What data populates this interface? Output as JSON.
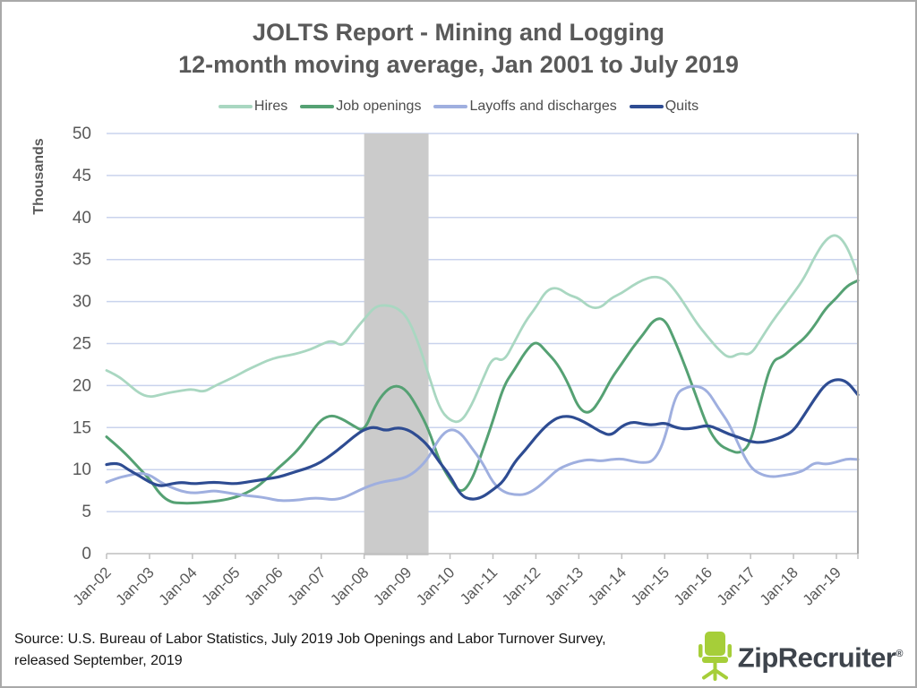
{
  "title": {
    "line1": "JOLTS Report - Mining and Logging",
    "line2": "12-month moving average, Jan 2001 to July 2019",
    "color": "#595959"
  },
  "legend": [
    {
      "label": "Hires",
      "color": "#a9d7c1"
    },
    {
      "label": "Job openings",
      "color": "#55a173"
    },
    {
      "label": "Layoffs and discharges",
      "color": "#9fafdf"
    },
    {
      "label": "Quits",
      "color": "#2e4c92"
    }
  ],
  "source": {
    "line1": "Source: U.S. Bureau of Labor Statistics, July 2019 Job Openings and Labor Turnover Survey,",
    "line2": "released September, 2019"
  },
  "logo": {
    "text": "ZipRecruiter",
    "registered": "®",
    "chair_color": "#a6ce39",
    "text_color": "#3e444c"
  },
  "chart_data": {
    "type": "line",
    "title": "JOLTS Report - Mining and Logging, 12-month moving average, Jan 2001 to July 2019",
    "ylabel": "Thousands",
    "ylim": [
      0,
      50
    ],
    "ytick_step": 5,
    "grid": true,
    "legend_position": "top",
    "x_start": 2002.0,
    "x_step": 0.25,
    "x_end": 2019.5,
    "x_tick_labels": [
      "Jan-02",
      "Jan-03",
      "Jan-04",
      "Jan-05",
      "Jan-06",
      "Jan-07",
      "Jan-08",
      "Jan-09",
      "Jan-10",
      "Jan-11",
      "Jan-12",
      "Jan-13",
      "Jan-14",
      "Jan-15",
      "Jan-16",
      "Jan-17",
      "Jan-18",
      "Jan-19"
    ],
    "recession_band": {
      "from": 2008.0,
      "to": 2009.5,
      "color": "#cbcbcb"
    },
    "colors": {
      "grid": "#c9d3ed",
      "axis": "#bfbfbf",
      "right_spine": "#a6a6a6",
      "tick_label": "#595959"
    },
    "series": [
      {
        "name": "Hires",
        "color": "#a9d7c1",
        "width": 2.8,
        "values": [
          21.8,
          21.2,
          20.2,
          19.1,
          18.6,
          18.9,
          19.2,
          19.4,
          19.6,
          19.2,
          19.9,
          20.5,
          21.1,
          21.8,
          22.4,
          23.0,
          23.4,
          23.6,
          23.9,
          24.3,
          24.9,
          25.4,
          24.6,
          26.4,
          27.9,
          29.4,
          29.6,
          29.3,
          28.2,
          25.3,
          21.3,
          17.3,
          15.8,
          15.6,
          17.6,
          20.6,
          23.5,
          22.8,
          25.2,
          27.6,
          29.3,
          31.4,
          31.7,
          30.8,
          30.4,
          29.3,
          29.2,
          30.4,
          31.0,
          31.9,
          32.6,
          33.0,
          32.7,
          31.3,
          29.4,
          27.4,
          25.8,
          24.3,
          23.2,
          23.9,
          23.6,
          25.6,
          27.6,
          29.3,
          31.0,
          32.8,
          35.4,
          37.4,
          38.1,
          36.6,
          33.2
        ]
      },
      {
        "name": "Job openings",
        "color": "#55a173",
        "width": 3,
        "values": [
          13.9,
          12.8,
          11.6,
          10.2,
          8.9,
          7.0,
          6.1,
          6.0,
          6.0,
          6.1,
          6.2,
          6.4,
          6.7,
          7.2,
          7.9,
          9.0,
          10.2,
          11.3,
          12.6,
          14.3,
          16.0,
          16.5,
          16.0,
          15.2,
          14.5,
          17.6,
          19.4,
          20.1,
          19.4,
          17.3,
          14.8,
          11.0,
          8.8,
          7.1,
          8.6,
          12.1,
          15.8,
          20.0,
          21.9,
          24.0,
          25.4,
          24.0,
          22.6,
          20.3,
          17.2,
          16.6,
          18.3,
          20.8,
          22.6,
          24.5,
          26.1,
          27.9,
          28.0,
          25.2,
          22.0,
          18.5,
          15.0,
          13.0,
          12.3,
          11.9,
          13.0,
          18.5,
          23.0,
          23.4,
          24.6,
          25.6,
          27.2,
          29.2,
          30.4,
          31.9,
          32.5
        ]
      },
      {
        "name": "Layoffs and discharges",
        "color": "#9fafdf",
        "width": 3,
        "values": [
          8.5,
          9.0,
          9.3,
          9.6,
          9.4,
          8.5,
          7.9,
          7.4,
          7.2,
          7.3,
          7.5,
          7.3,
          7.1,
          6.9,
          6.8,
          6.6,
          6.3,
          6.3,
          6.4,
          6.6,
          6.6,
          6.4,
          6.6,
          7.2,
          7.8,
          8.3,
          8.6,
          8.8,
          9.1,
          10.0,
          11.4,
          13.8,
          14.9,
          14.4,
          12.6,
          10.9,
          8.4,
          7.3,
          7.0,
          7.0,
          7.7,
          8.8,
          10.0,
          10.6,
          11.0,
          11.2,
          11.0,
          11.2,
          11.3,
          11.0,
          10.8,
          11.0,
          13.5,
          19.0,
          19.8,
          20.0,
          19.4,
          17.3,
          15.5,
          12.6,
          10.2,
          9.4,
          9.1,
          9.3,
          9.5,
          9.9,
          10.9,
          10.6,
          10.9,
          11.3,
          11.2
        ]
      },
      {
        "name": "Quits",
        "color": "#2e4c92",
        "width": 3.2,
        "values": [
          10.6,
          10.9,
          10.0,
          9.3,
          8.5,
          8.0,
          8.3,
          8.5,
          8.3,
          8.4,
          8.5,
          8.4,
          8.3,
          8.5,
          8.7,
          8.9,
          9.1,
          9.5,
          9.9,
          10.3,
          10.9,
          11.8,
          12.8,
          13.9,
          14.8,
          15.1,
          14.6,
          15.0,
          14.8,
          14.0,
          12.8,
          10.9,
          9.3,
          6.9,
          6.4,
          6.7,
          7.6,
          8.6,
          10.9,
          12.3,
          13.9,
          15.3,
          16.2,
          16.4,
          16.0,
          15.3,
          14.5,
          14.0,
          15.2,
          15.7,
          15.4,
          15.3,
          15.6,
          15.0,
          14.8,
          15.0,
          15.3,
          14.8,
          14.2,
          13.8,
          13.3,
          13.2,
          13.5,
          13.9,
          14.6,
          16.5,
          18.5,
          20.2,
          20.8,
          20.5,
          18.9
        ]
      }
    ]
  }
}
